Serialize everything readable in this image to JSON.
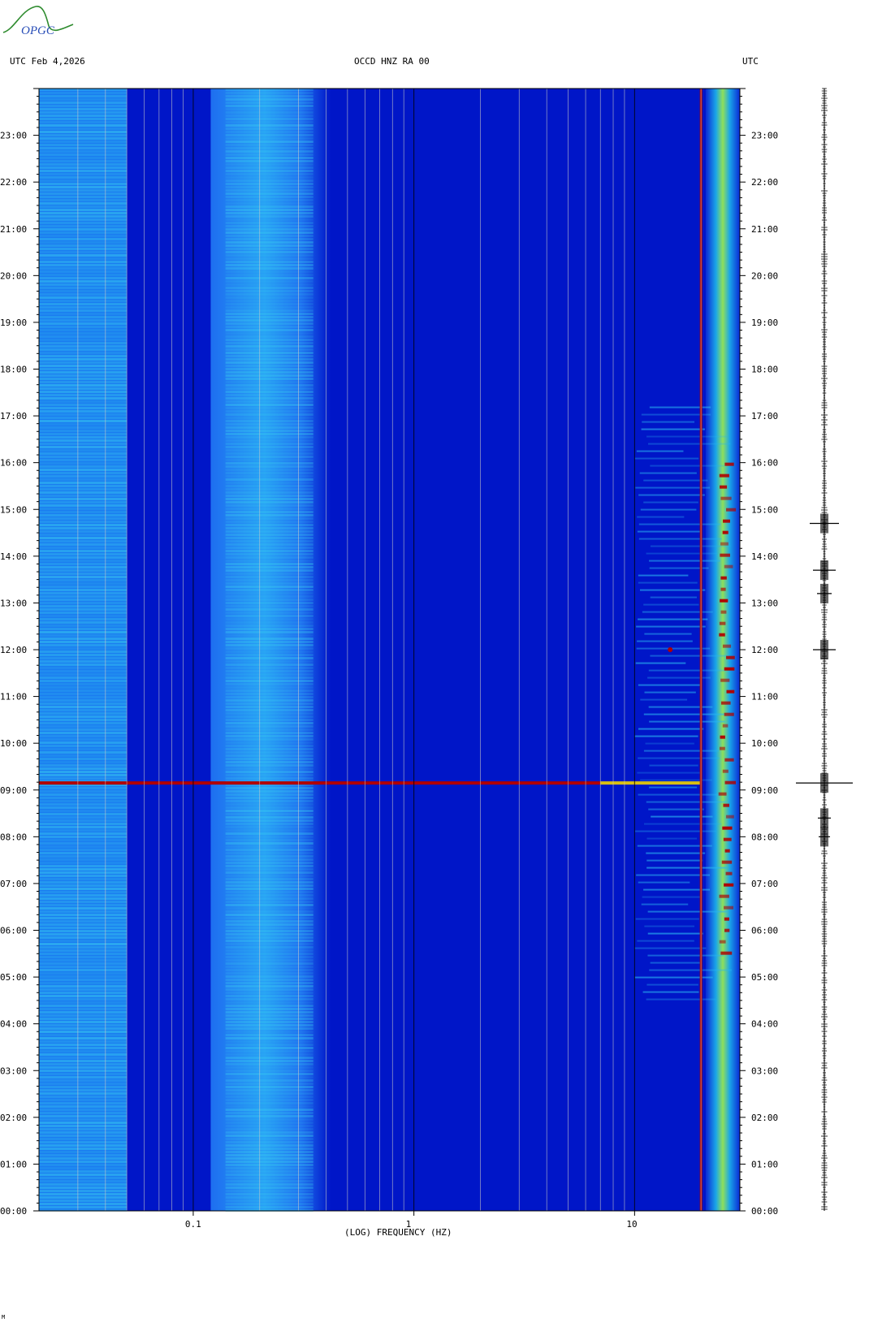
{
  "header": {
    "left": "UTC  Feb 4,2026",
    "center": "OCCD HNZ RA 00",
    "right": "UTC",
    "logo_text": "OPGC"
  },
  "colors": {
    "background": "#0016c8",
    "lowband": "#1a7cf0",
    "midband": "#29a4f2",
    "hot": "#b00000",
    "grid": "#c8c8c8",
    "grid_major": "#000000",
    "trace": "#000000"
  },
  "chart_data": {
    "type": "heatmap",
    "title": "OCCD HNZ RA 00",
    "xlabel": "(LOG) FREQUENCY (HZ)",
    "ylabel": "",
    "x_scale": "log",
    "xlim": [
      0.02,
      30
    ],
    "x_ticks": [
      {
        "value": 0.1,
        "label": "0.1"
      },
      {
        "value": 1,
        "label": "1"
      },
      {
        "value": 10,
        "label": "10"
      }
    ],
    "y_ticks": [
      "00:00",
      "01:00",
      "02:00",
      "03:00",
      "04:00",
      "05:00",
      "06:00",
      "07:00",
      "08:00",
      "09:00",
      "10:00",
      "11:00",
      "12:00",
      "13:00",
      "14:00",
      "15:00",
      "16:00",
      "17:00",
      "18:00",
      "19:00",
      "20:00",
      "21:00",
      "22:00",
      "23:00"
    ],
    "ylim_hours": [
      0,
      24
    ],
    "events": [
      {
        "time": "09:10",
        "type": "broadband transient"
      },
      {
        "time": "12:00",
        "type": "local event"
      }
    ],
    "persistent_lines_hz": [
      20
    ],
    "trace_events_hours": [
      9.15,
      12.0,
      13.7,
      14.7,
      13.2,
      8.4,
      8.0
    ]
  },
  "footer": {
    "corner": "M"
  }
}
